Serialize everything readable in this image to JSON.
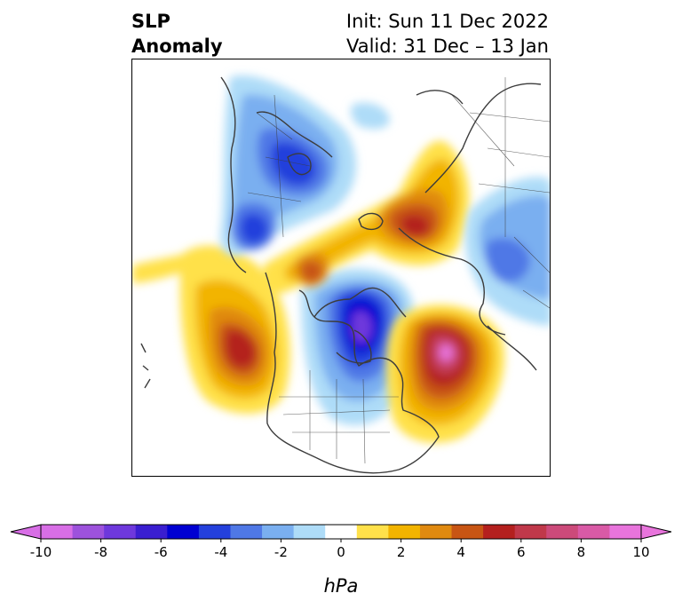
{
  "header": {
    "title_line1": "SLP",
    "title_line2": "Anomaly",
    "init": "Init: Sun 11 Dec 2022",
    "valid": "Valid: 31 Dec – 13 Jan"
  },
  "colorbar": {
    "unit": "hPa",
    "ticks": [
      "-10",
      "-8",
      "-6",
      "-4",
      "-2",
      "0",
      "2",
      "4",
      "6",
      "8",
      "10"
    ],
    "colors": [
      "#d86ee6",
      "#9d52dc",
      "#6e38dc",
      "#3a1ed0",
      "#0000d2",
      "#2440dc",
      "#4f78e6",
      "#7aaff0",
      "#aedcf8",
      "#ffffff",
      "#ffe14a",
      "#f2b400",
      "#e08a10",
      "#c85514",
      "#b4201e",
      "#c0384a",
      "#cc4a7a",
      "#d95aa6",
      "#e874dc"
    ],
    "ext_low": "#d86ee6",
    "ext_high": "#e874dc"
  }
}
